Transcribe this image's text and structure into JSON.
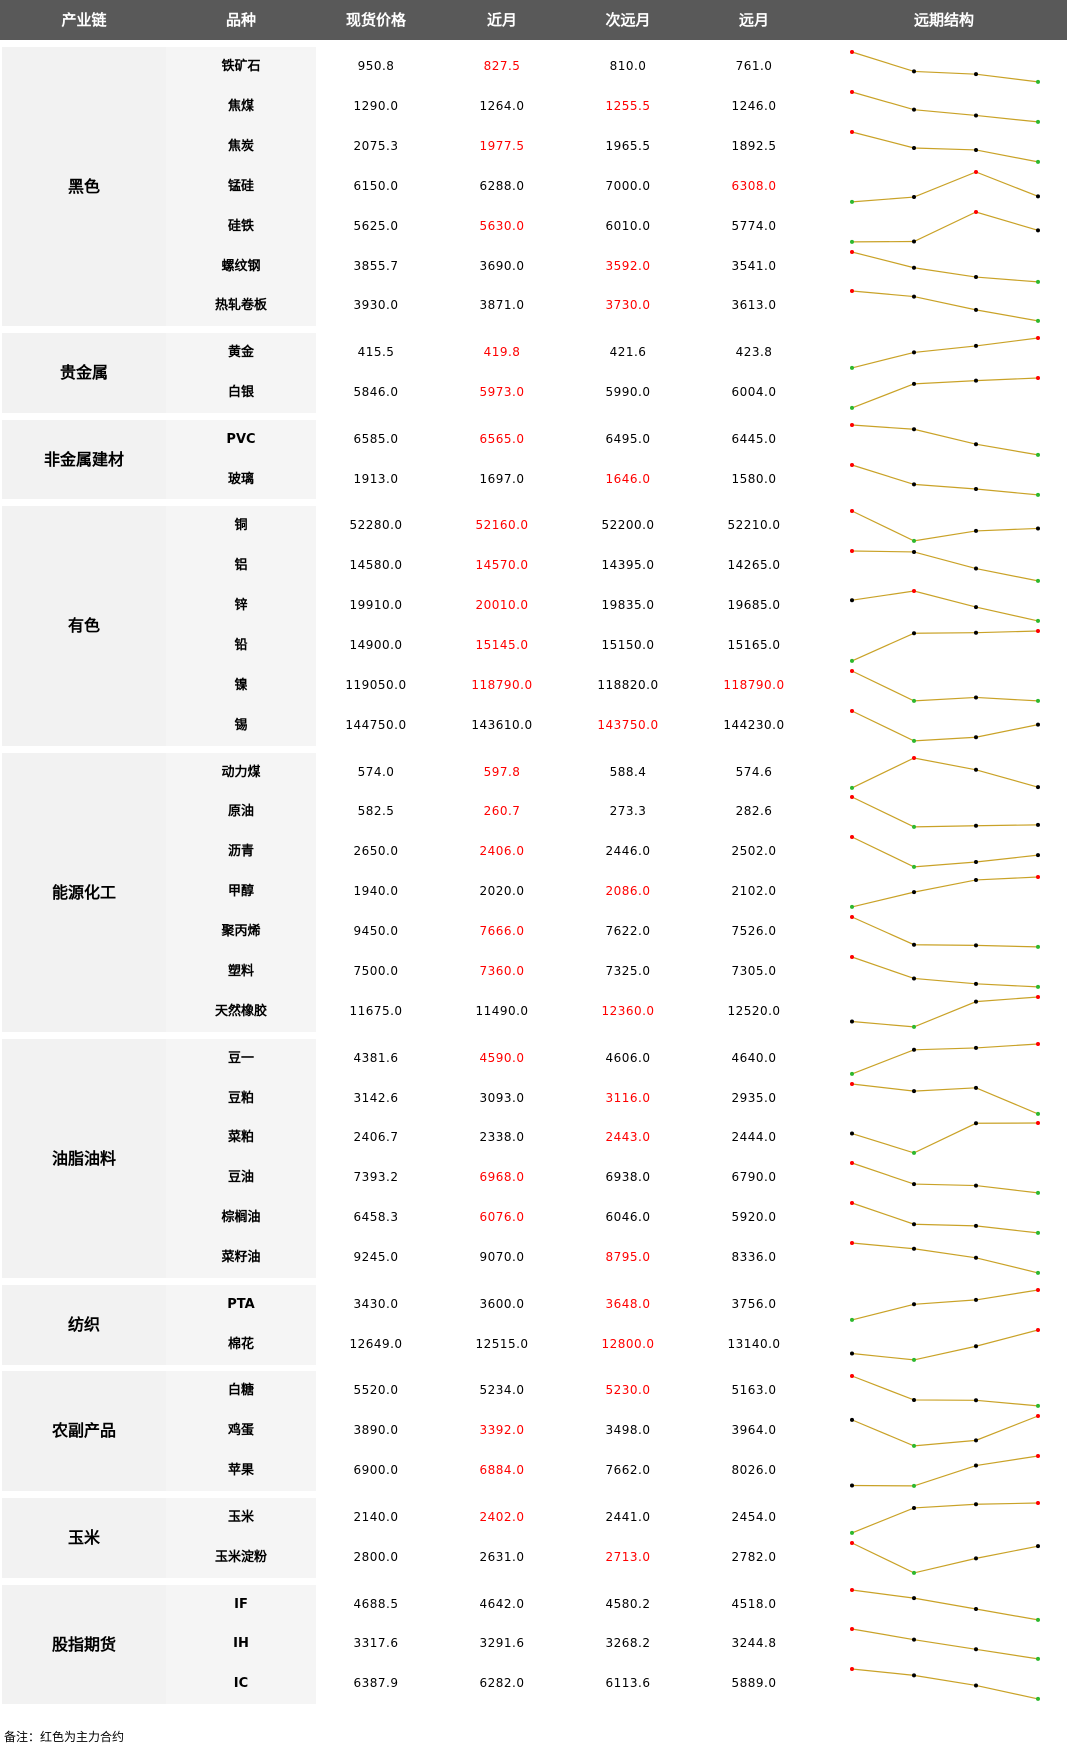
{
  "header": [
    "产业链",
    "品种",
    "现货价格",
    "近月",
    "次远月",
    "远月",
    "远期结构"
  ],
  "colors": {
    "main_contract": "#ff0000",
    "line": "#c9a227",
    "high": "#ff0000",
    "low": "#2eb82e",
    "mid": "#000000"
  },
  "groups": [
    {
      "name": "黑色",
      "rows": [
        {
          "name": "铁矿石",
          "spot": "950.8",
          "near": "827.5",
          "next": "810.0",
          "far": "761.0",
          "main": 1
        },
        {
          "name": "焦煤",
          "spot": "1290.0",
          "near": "1264.0",
          "next": "1255.5",
          "far": "1246.0",
          "main": 2
        },
        {
          "name": "焦炭",
          "spot": "2075.3",
          "near": "1977.5",
          "next": "1965.5",
          "far": "1892.5",
          "main": 1
        },
        {
          "name": "锰硅",
          "spot": "6150.0",
          "near": "6288.0",
          "next": "7000.0",
          "far": "6308.0",
          "main": 3
        },
        {
          "name": "硅铁",
          "spot": "5625.0",
          "near": "5630.0",
          "next": "6010.0",
          "far": "5774.0",
          "main": 1
        },
        {
          "name": "螺纹钢",
          "spot": "3855.7",
          "near": "3690.0",
          "next": "3592.0",
          "far": "3541.0",
          "main": 2
        },
        {
          "name": "热轧卷板",
          "spot": "3930.0",
          "near": "3871.0",
          "next": "3730.0",
          "far": "3613.0",
          "main": 2
        }
      ]
    },
    {
      "name": "贵金属",
      "rows": [
        {
          "name": "黄金",
          "spot": "415.5",
          "near": "419.8",
          "next": "421.6",
          "far": "423.8",
          "main": 1
        },
        {
          "name": "白银",
          "spot": "5846.0",
          "near": "5973.0",
          "next": "5990.0",
          "far": "6004.0",
          "main": 1
        }
      ]
    },
    {
      "name": "非金属建材",
      "rows": [
        {
          "name": "PVC",
          "spot": "6585.0",
          "near": "6565.0",
          "next": "6495.0",
          "far": "6445.0",
          "main": 1
        },
        {
          "name": "玻璃",
          "spot": "1913.0",
          "near": "1697.0",
          "next": "1646.0",
          "far": "1580.0",
          "main": 2
        }
      ]
    },
    {
      "name": "有色",
      "rows": [
        {
          "name": "铜",
          "spot": "52280.0",
          "near": "52160.0",
          "next": "52200.0",
          "far": "52210.0",
          "main": 1
        },
        {
          "name": "铝",
          "spot": "14580.0",
          "near": "14570.0",
          "next": "14395.0",
          "far": "14265.0",
          "main": 1
        },
        {
          "name": "锌",
          "spot": "19910.0",
          "near": "20010.0",
          "next": "19835.0",
          "far": "19685.0",
          "main": 1
        },
        {
          "name": "铅",
          "spot": "14900.0",
          "near": "15145.0",
          "next": "15150.0",
          "far": "15165.0",
          "main": 1
        },
        {
          "name": "镍",
          "spot": "119050.0",
          "near": "118790.0",
          "next": "118820.0",
          "far": "118790.0",
          "main": [
            1,
            3
          ]
        },
        {
          "name": "锡",
          "spot": "144750.0",
          "near": "143610.0",
          "next": "143750.0",
          "far": "144230.0",
          "main": 2
        }
      ]
    },
    {
      "name": "能源化工",
      "rows": [
        {
          "name": "动力煤",
          "spot": "574.0",
          "near": "597.8",
          "next": "588.4",
          "far": "574.6",
          "main": 1
        },
        {
          "name": "原油",
          "spot": "582.5",
          "near": "260.7",
          "next": "273.3",
          "far": "282.6",
          "main": 1
        },
        {
          "name": "沥青",
          "spot": "2650.0",
          "near": "2406.0",
          "next": "2446.0",
          "far": "2502.0",
          "main": 1
        },
        {
          "name": "甲醇",
          "spot": "1940.0",
          "near": "2020.0",
          "next": "2086.0",
          "far": "2102.0",
          "main": 2
        },
        {
          "name": "聚丙烯",
          "spot": "9450.0",
          "near": "7666.0",
          "next": "7622.0",
          "far": "7526.0",
          "main": 1
        },
        {
          "name": "塑料",
          "spot": "7500.0",
          "near": "7360.0",
          "next": "7325.0",
          "far": "7305.0",
          "main": 1
        },
        {
          "name": "天然橡胶",
          "spot": "11675.0",
          "near": "11490.0",
          "next": "12360.0",
          "far": "12520.0",
          "main": 2
        }
      ]
    },
    {
      "name": "油脂油料",
      "rows": [
        {
          "name": "豆一",
          "spot": "4381.6",
          "near": "4590.0",
          "next": "4606.0",
          "far": "4640.0",
          "main": 1
        },
        {
          "name": "豆粕",
          "spot": "3142.6",
          "near": "3093.0",
          "next": "3116.0",
          "far": "2935.0",
          "main": 2
        },
        {
          "name": "菜粕",
          "spot": "2406.7",
          "near": "2338.0",
          "next": "2443.0",
          "far": "2444.0",
          "main": 2
        },
        {
          "name": "豆油",
          "spot": "7393.2",
          "near": "6968.0",
          "next": "6938.0",
          "far": "6790.0",
          "main": 1
        },
        {
          "name": "棕榈油",
          "spot": "6458.3",
          "near": "6076.0",
          "next": "6046.0",
          "far": "5920.0",
          "main": 1
        },
        {
          "name": "菜籽油",
          "spot": "9245.0",
          "near": "9070.0",
          "next": "8795.0",
          "far": "8336.0",
          "main": 2
        }
      ]
    },
    {
      "name": "纺织",
      "rows": [
        {
          "name": "PTA",
          "spot": "3430.0",
          "near": "3600.0",
          "next": "3648.0",
          "far": "3756.0",
          "main": 2
        },
        {
          "name": "棉花",
          "spot": "12649.0",
          "near": "12515.0",
          "next": "12800.0",
          "far": "13140.0",
          "main": 2
        }
      ]
    },
    {
      "name": "农副产品",
      "rows": [
        {
          "name": "白糖",
          "spot": "5520.0",
          "near": "5234.0",
          "next": "5230.0",
          "far": "5163.0",
          "main": 2
        },
        {
          "name": "鸡蛋",
          "spot": "3890.0",
          "near": "3392.0",
          "next": "3498.0",
          "far": "3964.0",
          "main": 1
        },
        {
          "name": "苹果",
          "spot": "6900.0",
          "near": "6884.0",
          "next": "7662.0",
          "far": "8026.0",
          "main": 1
        }
      ]
    },
    {
      "name": "玉米",
      "rows": [
        {
          "name": "玉米",
          "spot": "2140.0",
          "near": "2402.0",
          "next": "2441.0",
          "far": "2454.0",
          "main": 1
        },
        {
          "name": "玉米淀粉",
          "spot": "2800.0",
          "near": "2631.0",
          "next": "2713.0",
          "far": "2782.0",
          "main": 2
        }
      ]
    },
    {
      "name": "股指期货",
      "rows": [
        {
          "name": "IF",
          "spot": "4688.5",
          "near": "4642.0",
          "next": "4580.2",
          "far": "4518.0",
          "main": 0
        },
        {
          "name": "IH",
          "spot": "3317.6",
          "near": "3291.6",
          "next": "3268.2",
          "far": "3244.8",
          "main": 0
        },
        {
          "name": "IC",
          "spot": "6387.9",
          "near": "6282.0",
          "next": "6113.6",
          "far": "5889.0",
          "main": 0
        }
      ]
    }
  ],
  "footnote": "备注：红色为主力合约"
}
